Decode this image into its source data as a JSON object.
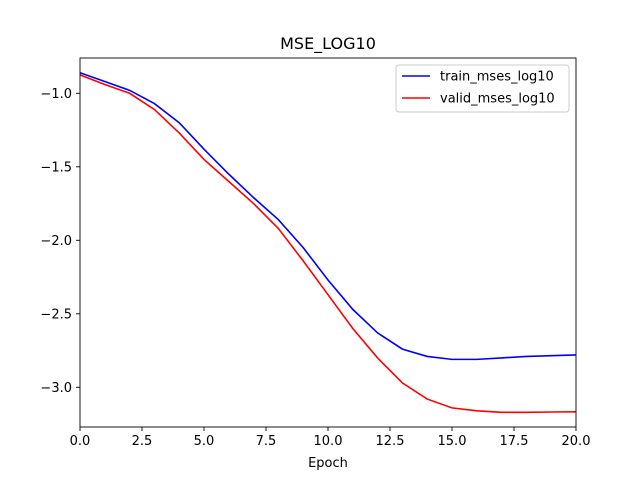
{
  "chart_data": {
    "type": "line",
    "title": "MSE_LOG10",
    "xlabel": "Epoch",
    "ylabel": "",
    "xlim": [
      0,
      20
    ],
    "ylim": [
      -3.27,
      -0.76
    ],
    "xticks": [
      0.0,
      2.5,
      5.0,
      7.5,
      10.0,
      12.5,
      15.0,
      17.5,
      20.0
    ],
    "xtick_labels": [
      "0.0",
      "2.5",
      "5.0",
      "7.5",
      "10.0",
      "12.5",
      "15.0",
      "17.5",
      "20.0"
    ],
    "yticks": [
      -1.0,
      -1.5,
      -2.0,
      -2.5,
      -3.0
    ],
    "ytick_labels": [
      "−1.0",
      "−1.5",
      "−2.0",
      "−2.5",
      "−3.0"
    ],
    "grid": false,
    "legend_position": "top-right",
    "x": [
      0,
      1,
      2,
      3,
      4,
      5,
      6,
      7,
      8,
      9,
      10,
      11,
      12,
      13,
      14,
      15,
      16,
      17,
      18,
      19,
      20
    ],
    "series": [
      {
        "name": "train_mses_log10",
        "color": "#0000ff",
        "values": [
          -0.86,
          -0.92,
          -0.98,
          -1.07,
          -1.2,
          -1.38,
          -1.55,
          -1.71,
          -1.86,
          -2.05,
          -2.27,
          -2.47,
          -2.63,
          -2.74,
          -2.79,
          -2.81,
          -2.81,
          -2.8,
          -2.79,
          -2.785,
          -2.78
        ]
      },
      {
        "name": "valid_mses_log10",
        "color": "#ff0000",
        "values": [
          -0.875,
          -0.94,
          -1.0,
          -1.11,
          -1.27,
          -1.45,
          -1.6,
          -1.75,
          -1.92,
          -2.14,
          -2.37,
          -2.6,
          -2.8,
          -2.97,
          -3.08,
          -3.14,
          -3.16,
          -3.17,
          -3.17,
          -3.168,
          -3.167
        ]
      }
    ]
  }
}
